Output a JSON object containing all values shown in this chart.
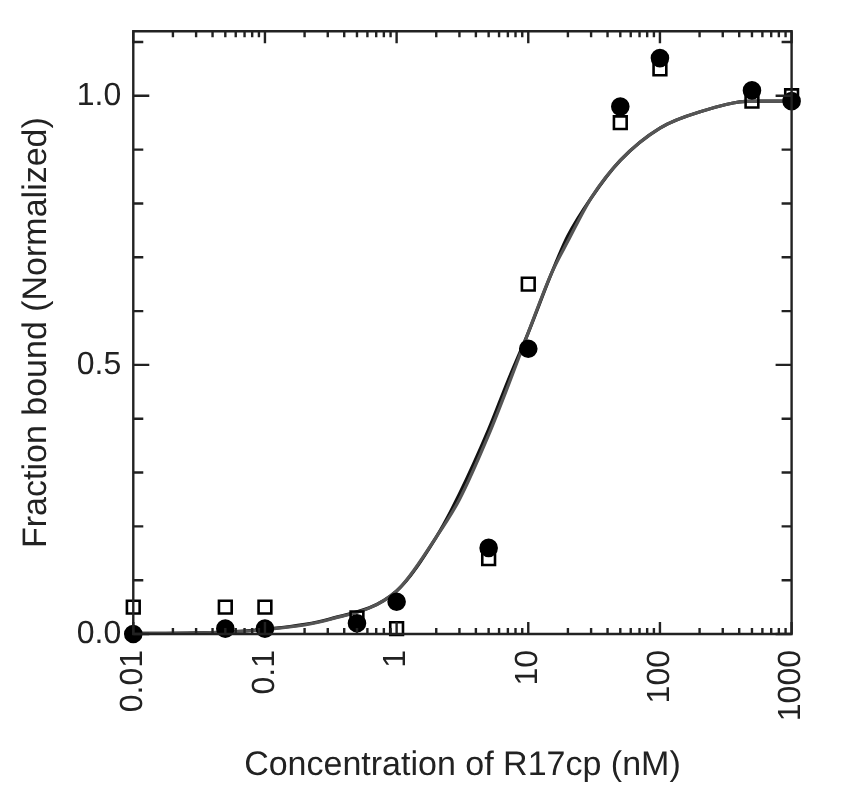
{
  "chart_data": {
    "type": "scatter",
    "xlabel": "Concentration of R17cp (nM)",
    "ylabel": "Fraction bound (Normalized)",
    "log": "x",
    "grid": false,
    "legend": false,
    "xlim": [
      0.01,
      1000
    ],
    "ylim": [
      0,
      1.12
    ],
    "xticks": [
      {
        "value": 0.01,
        "label": "0.01"
      },
      {
        "value": 0.02,
        "label": null
      },
      {
        "value": 0.03,
        "label": null
      },
      {
        "value": 0.04,
        "label": null
      },
      {
        "value": 0.05,
        "label": null
      },
      {
        "value": 0.06,
        "label": null
      },
      {
        "value": 0.07,
        "label": null
      },
      {
        "value": 0.08,
        "label": null
      },
      {
        "value": 0.09,
        "label": null
      },
      {
        "value": 0.1,
        "label": "0.1"
      },
      {
        "value": 0.2,
        "label": null
      },
      {
        "value": 0.3,
        "label": null
      },
      {
        "value": 0.4,
        "label": null
      },
      {
        "value": 0.5,
        "label": null
      },
      {
        "value": 0.6,
        "label": null
      },
      {
        "value": 0.7,
        "label": null
      },
      {
        "value": 0.8,
        "label": null
      },
      {
        "value": 0.9,
        "label": null
      },
      1,
      {
        "value": 2,
        "label": null
      },
      {
        "value": 3,
        "label": null
      },
      {
        "value": 4,
        "label": null
      },
      {
        "value": 5,
        "label": null
      },
      {
        "value": 6,
        "label": null
      },
      {
        "value": 7,
        "label": null
      },
      {
        "value": 8,
        "label": null
      },
      {
        "value": 9,
        "label": null
      },
      10,
      {
        "value": 20,
        "label": null
      },
      {
        "value": 30,
        "label": null
      },
      {
        "value": 40,
        "label": null
      },
      {
        "value": 50,
        "label": null
      },
      {
        "value": 60,
        "label": null
      },
      {
        "value": 70,
        "label": null
      },
      {
        "value": 80,
        "label": null
      },
      {
        "value": 90,
        "label": null
      },
      100,
      {
        "value": 200,
        "label": null
      },
      {
        "value": 300,
        "label": null
      },
      {
        "value": 400,
        "label": null
      },
      {
        "value": 500,
        "label": null
      },
      {
        "value": 600,
        "label": null
      },
      {
        "value": 700,
        "label": null
      },
      {
        "value": 800,
        "label": null
      },
      {
        "value": 900,
        "label": null
      },
      1000
    ],
    "yticks": [
      {
        "value": 0,
        "label": "0.0"
      },
      {
        "value": 0.1,
        "label": null
      },
      {
        "value": 0.2,
        "label": null
      },
      {
        "value": 0.3,
        "label": null
      },
      {
        "value": 0.4,
        "label": null
      },
      0.5,
      {
        "value": 0.6,
        "label": null
      },
      {
        "value": 0.7,
        "label": null
      },
      {
        "value": 0.8,
        "label": null
      },
      {
        "value": 0.9,
        "label": null
      },
      {
        "value": 1,
        "label": "1.0"
      },
      {
        "value": 1.1,
        "label": null
      }
    ],
    "series": [
      {
        "type": "line",
        "color": "#555555",
        "marker": "none",
        "x": [
          0.01,
          0.03,
          0.1,
          0.3,
          1,
          2,
          3,
          5,
          7,
          10,
          15,
          20,
          30,
          50,
          100,
          200,
          500,
          1000
        ],
        "values": [
          0.001,
          0.002,
          0.008,
          0.026,
          0.08,
          0.18,
          0.25,
          0.37,
          0.46,
          0.56,
          0.67,
          0.73,
          0.81,
          0.88,
          0.94,
          0.97,
          0.99,
          0.99
        ]
      },
      {
        "type": "line",
        "color": "#111111",
        "marker": "none",
        "x": [
          0.01,
          0.03,
          0.1,
          0.3,
          1,
          2,
          3,
          5,
          7,
          10,
          15,
          20,
          30,
          50,
          100,
          200,
          500,
          1000
        ],
        "values": [
          0.001,
          0.002,
          0.009,
          0.027,
          0.08,
          0.18,
          0.26,
          0.38,
          0.47,
          0.56,
          0.67,
          0.74,
          0.81,
          0.88,
          0.94,
          0.97,
          0.99,
          0.99
        ]
      },
      {
        "color": "#000000",
        "marker": "circle",
        "x": [
          0.01,
          0.05,
          0.1,
          0.5,
          1,
          5,
          10,
          50,
          100,
          500,
          1000
        ],
        "values": [
          0,
          0.01,
          0.01,
          0.02,
          0.06,
          0.16,
          0.53,
          0.98,
          1.07,
          1.01,
          0.99
        ]
      },
      {
        "color": "#000000",
        "marker": "square",
        "x": [
          0.01,
          0.05,
          0.1,
          0.5,
          1,
          5,
          10,
          50,
          100,
          500,
          1000
        ],
        "values": [
          0.05,
          0.05,
          0.05,
          0.03,
          0.01,
          0.14,
          0.65,
          0.95,
          1.05,
          0.99,
          1.0
        ]
      }
    ]
  }
}
